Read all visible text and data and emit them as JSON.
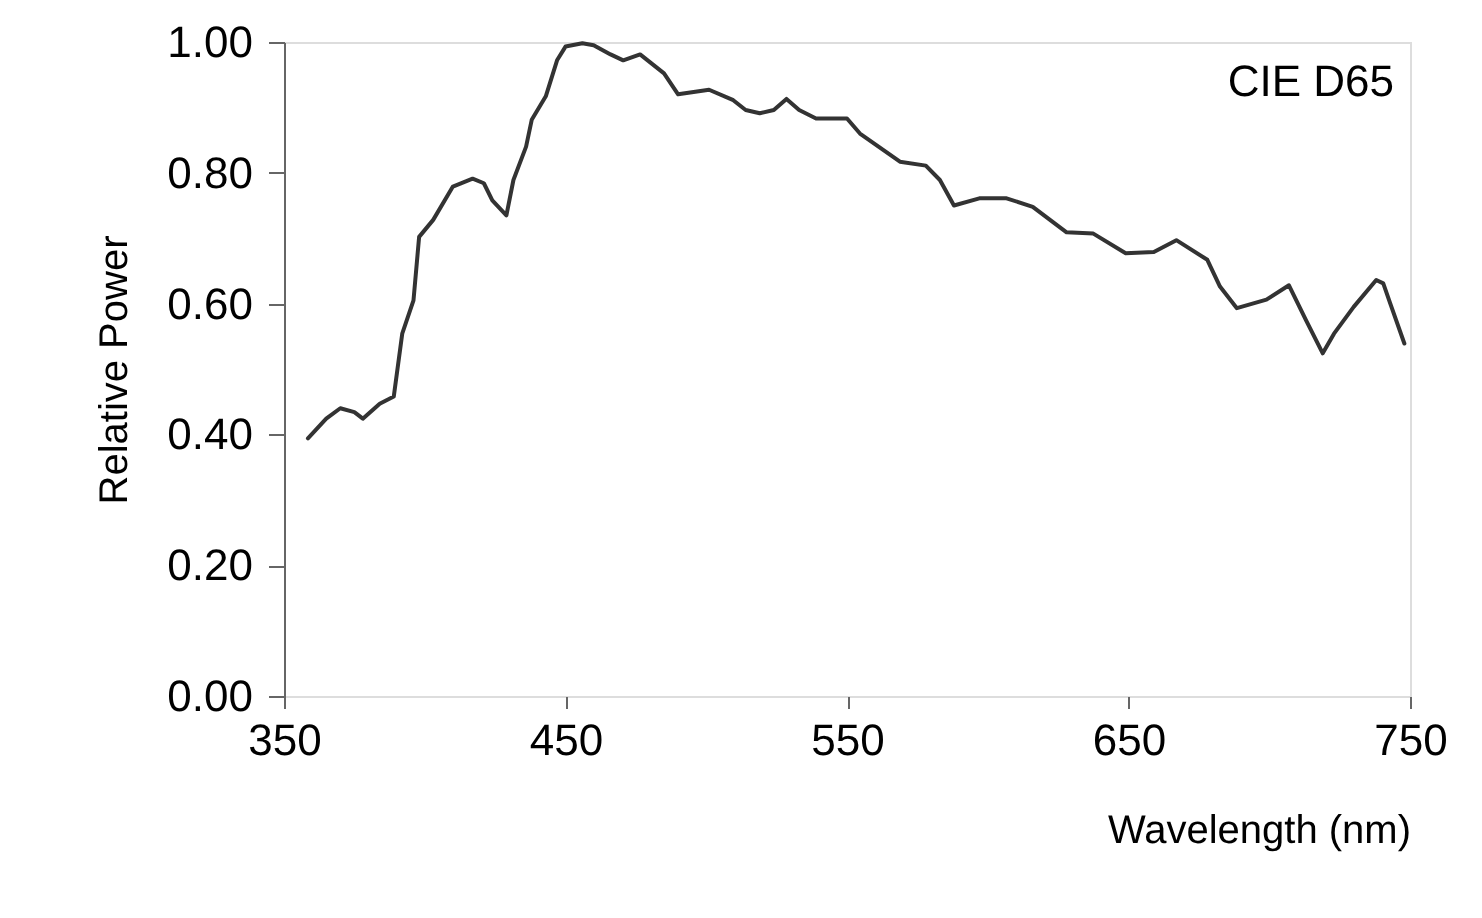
{
  "chart_data": {
    "type": "line",
    "xlabel": "Wavelength (nm)",
    "ylabel": "Relative Power",
    "annotations": [
      "CIE D65"
    ],
    "x": [
      358.5,
      365,
      370,
      375,
      378,
      384,
      389,
      392,
      396,
      398,
      403,
      410,
      417,
      421,
      424,
      429,
      431.5,
      436,
      438,
      443,
      447,
      450,
      456,
      460,
      466,
      470.5,
      476.5,
      485,
      490,
      501,
      509.6,
      514,
      519,
      524,
      528.5,
      533,
      539,
      550,
      554.6,
      568.8,
      578,
      583,
      588,
      597,
      606.7,
      616,
      628,
      637.5,
      649,
      659,
      667,
      678,
      682.5,
      688.5,
      699,
      707,
      713,
      719,
      723,
      730,
      738,
      740.5,
      743,
      748
    ],
    "series": [
      {
        "color": "#333333",
        "values": [
          0.394,
          0.424,
          0.44,
          0.434,
          0.424,
          0.447,
          0.458,
          0.554,
          0.605,
          0.702,
          0.728,
          0.779,
          0.791,
          0.784,
          0.758,
          0.735,
          0.789,
          0.84,
          0.881,
          0.917,
          0.972,
          0.993,
          0.998,
          0.995,
          0.981,
          0.972,
          0.981,
          0.952,
          0.92,
          0.927,
          0.911,
          0.896,
          0.891,
          0.896,
          0.913,
          0.896,
          0.883,
          0.883,
          0.86,
          0.817,
          0.811,
          0.789,
          0.75,
          0.761,
          0.761,
          0.748,
          0.709,
          0.707,
          0.677,
          0.679,
          0.697,
          0.667,
          0.626,
          0.593,
          0.606,
          0.628,
          0.575,
          0.524,
          0.554,
          0.595,
          0.636,
          0.631,
          0.6,
          0.539
        ]
      }
    ],
    "xlim": [
      350,
      750
    ],
    "xticks": [
      350,
      450,
      550,
      650,
      750
    ],
    "ylim": [
      0,
      1
    ],
    "yticks": [
      {
        "value": 0,
        "label": "0.00"
      },
      {
        "value": 0.2,
        "label": "0.20"
      },
      {
        "value": 0.4,
        "label": "0.40"
      },
      {
        "value": 0.6,
        "label": "0.60"
      },
      {
        "value": 0.8,
        "label": "0.80"
      },
      {
        "value": 1,
        "label": "1.00"
      }
    ],
    "grid": false,
    "marker": "none",
    "line_style": "solid"
  }
}
